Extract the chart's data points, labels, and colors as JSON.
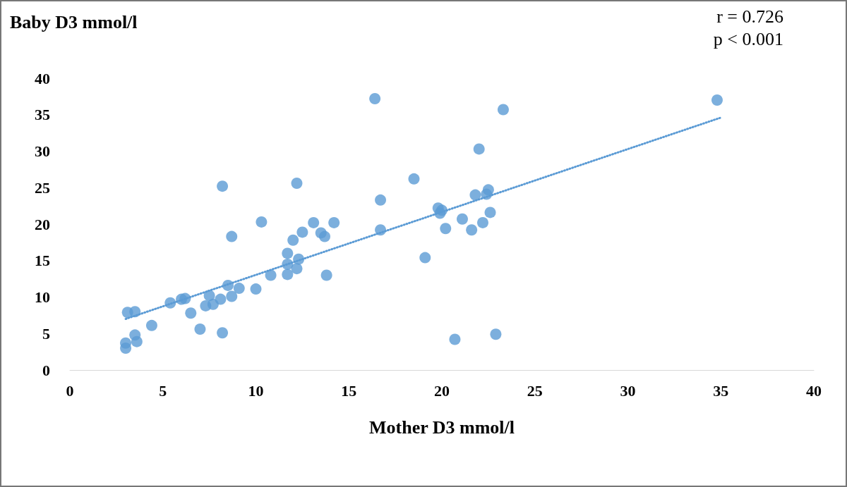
{
  "chart_data": {
    "type": "scatter",
    "xlabel": "Mother D3 mmol/l",
    "ylabel": "Baby D3 mmol/l",
    "annotations": [
      "r = 0.726",
      "p < 0.001"
    ],
    "xlim": [
      0,
      40
    ],
    "xticks": [
      0,
      5,
      10,
      15,
      20,
      25,
      30,
      35,
      40
    ],
    "ylim": [
      0,
      40
    ],
    "yticks": [
      0,
      5,
      10,
      15,
      20,
      25,
      30,
      35,
      40
    ],
    "grid": false,
    "marker": "circle",
    "series": [
      {
        "color": "#5b9bd5",
        "x": [
          3.0,
          3.0,
          3.1,
          3.5,
          3.5,
          3.6,
          4.4,
          5.4,
          6.0,
          6.2,
          6.5,
          7.0,
          7.3,
          7.5,
          7.7,
          8.1,
          8.2,
          8.2,
          8.5,
          8.7,
          8.7,
          9.1,
          10.0,
          10.3,
          10.8,
          11.7,
          11.7,
          11.7,
          12.0,
          12.2,
          12.2,
          12.3,
          12.5,
          13.1,
          13.5,
          13.7,
          13.8,
          14.2,
          16.4,
          16.7,
          16.7,
          18.5,
          19.1,
          19.8,
          19.9,
          20.0,
          20.2,
          20.7,
          21.1,
          21.6,
          21.8,
          22.0,
          22.2,
          22.4,
          22.5,
          22.6,
          22.9,
          23.3,
          34.8
        ],
        "values": [
          3.0,
          3.7,
          7.9,
          8.0,
          4.8,
          3.9,
          6.1,
          9.2,
          9.7,
          9.8,
          7.8,
          5.6,
          8.8,
          10.2,
          9.0,
          9.7,
          5.1,
          25.2,
          11.6,
          10.1,
          18.3,
          11.2,
          11.1,
          20.3,
          13.0,
          16.0,
          14.5,
          13.1,
          17.8,
          25.6,
          13.9,
          15.2,
          18.9,
          20.2,
          18.8,
          18.3,
          13.0,
          20.2,
          37.2,
          23.3,
          19.2,
          26.2,
          15.4,
          22.2,
          21.5,
          21.9,
          19.4,
          4.2,
          20.7,
          19.2,
          24.0,
          30.3,
          20.2,
          24.1,
          24.7,
          21.6,
          4.9,
          35.7,
          37.0
        ]
      },
      {
        "type": "line",
        "color": "#5b9bd5",
        "line_style": "dotted",
        "marker": "none",
        "x": [
          3.0,
          35.0
        ],
        "values": [
          7.0,
          34.6
        ]
      }
    ]
  }
}
